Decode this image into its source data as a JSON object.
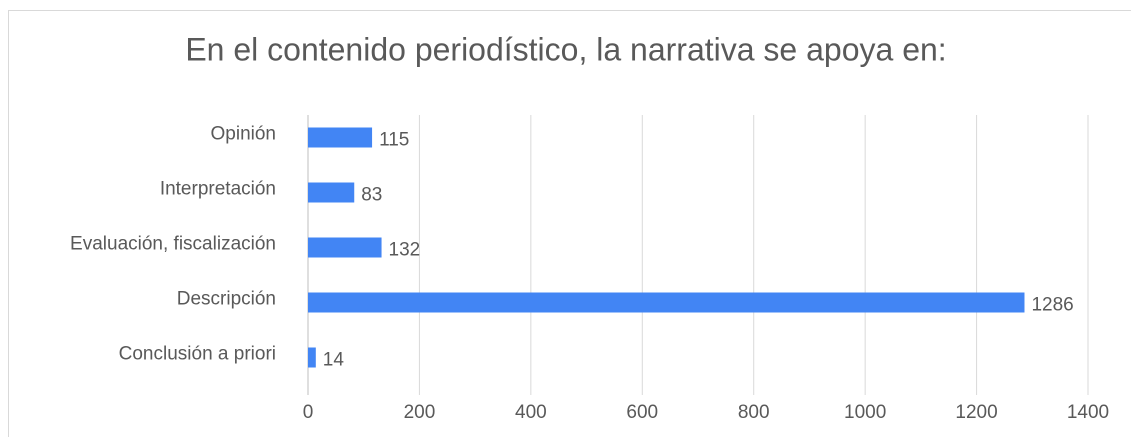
{
  "chart_data": {
    "type": "bar",
    "orientation": "horizontal",
    "title": "En el contenido periodístico, la narrativa se apoya en:",
    "categories": [
      "Opinión",
      "Interpretación",
      "Evaluación, fiscalización",
      "Descripción",
      "Conclusión a priori"
    ],
    "values": [
      115,
      83,
      132,
      1286,
      14
    ],
    "color": "#4285f4",
    "xlim": [
      0,
      1400
    ],
    "xticks": [
      0,
      200,
      400,
      600,
      800,
      1000,
      1200,
      1400
    ],
    "grid": true
  }
}
